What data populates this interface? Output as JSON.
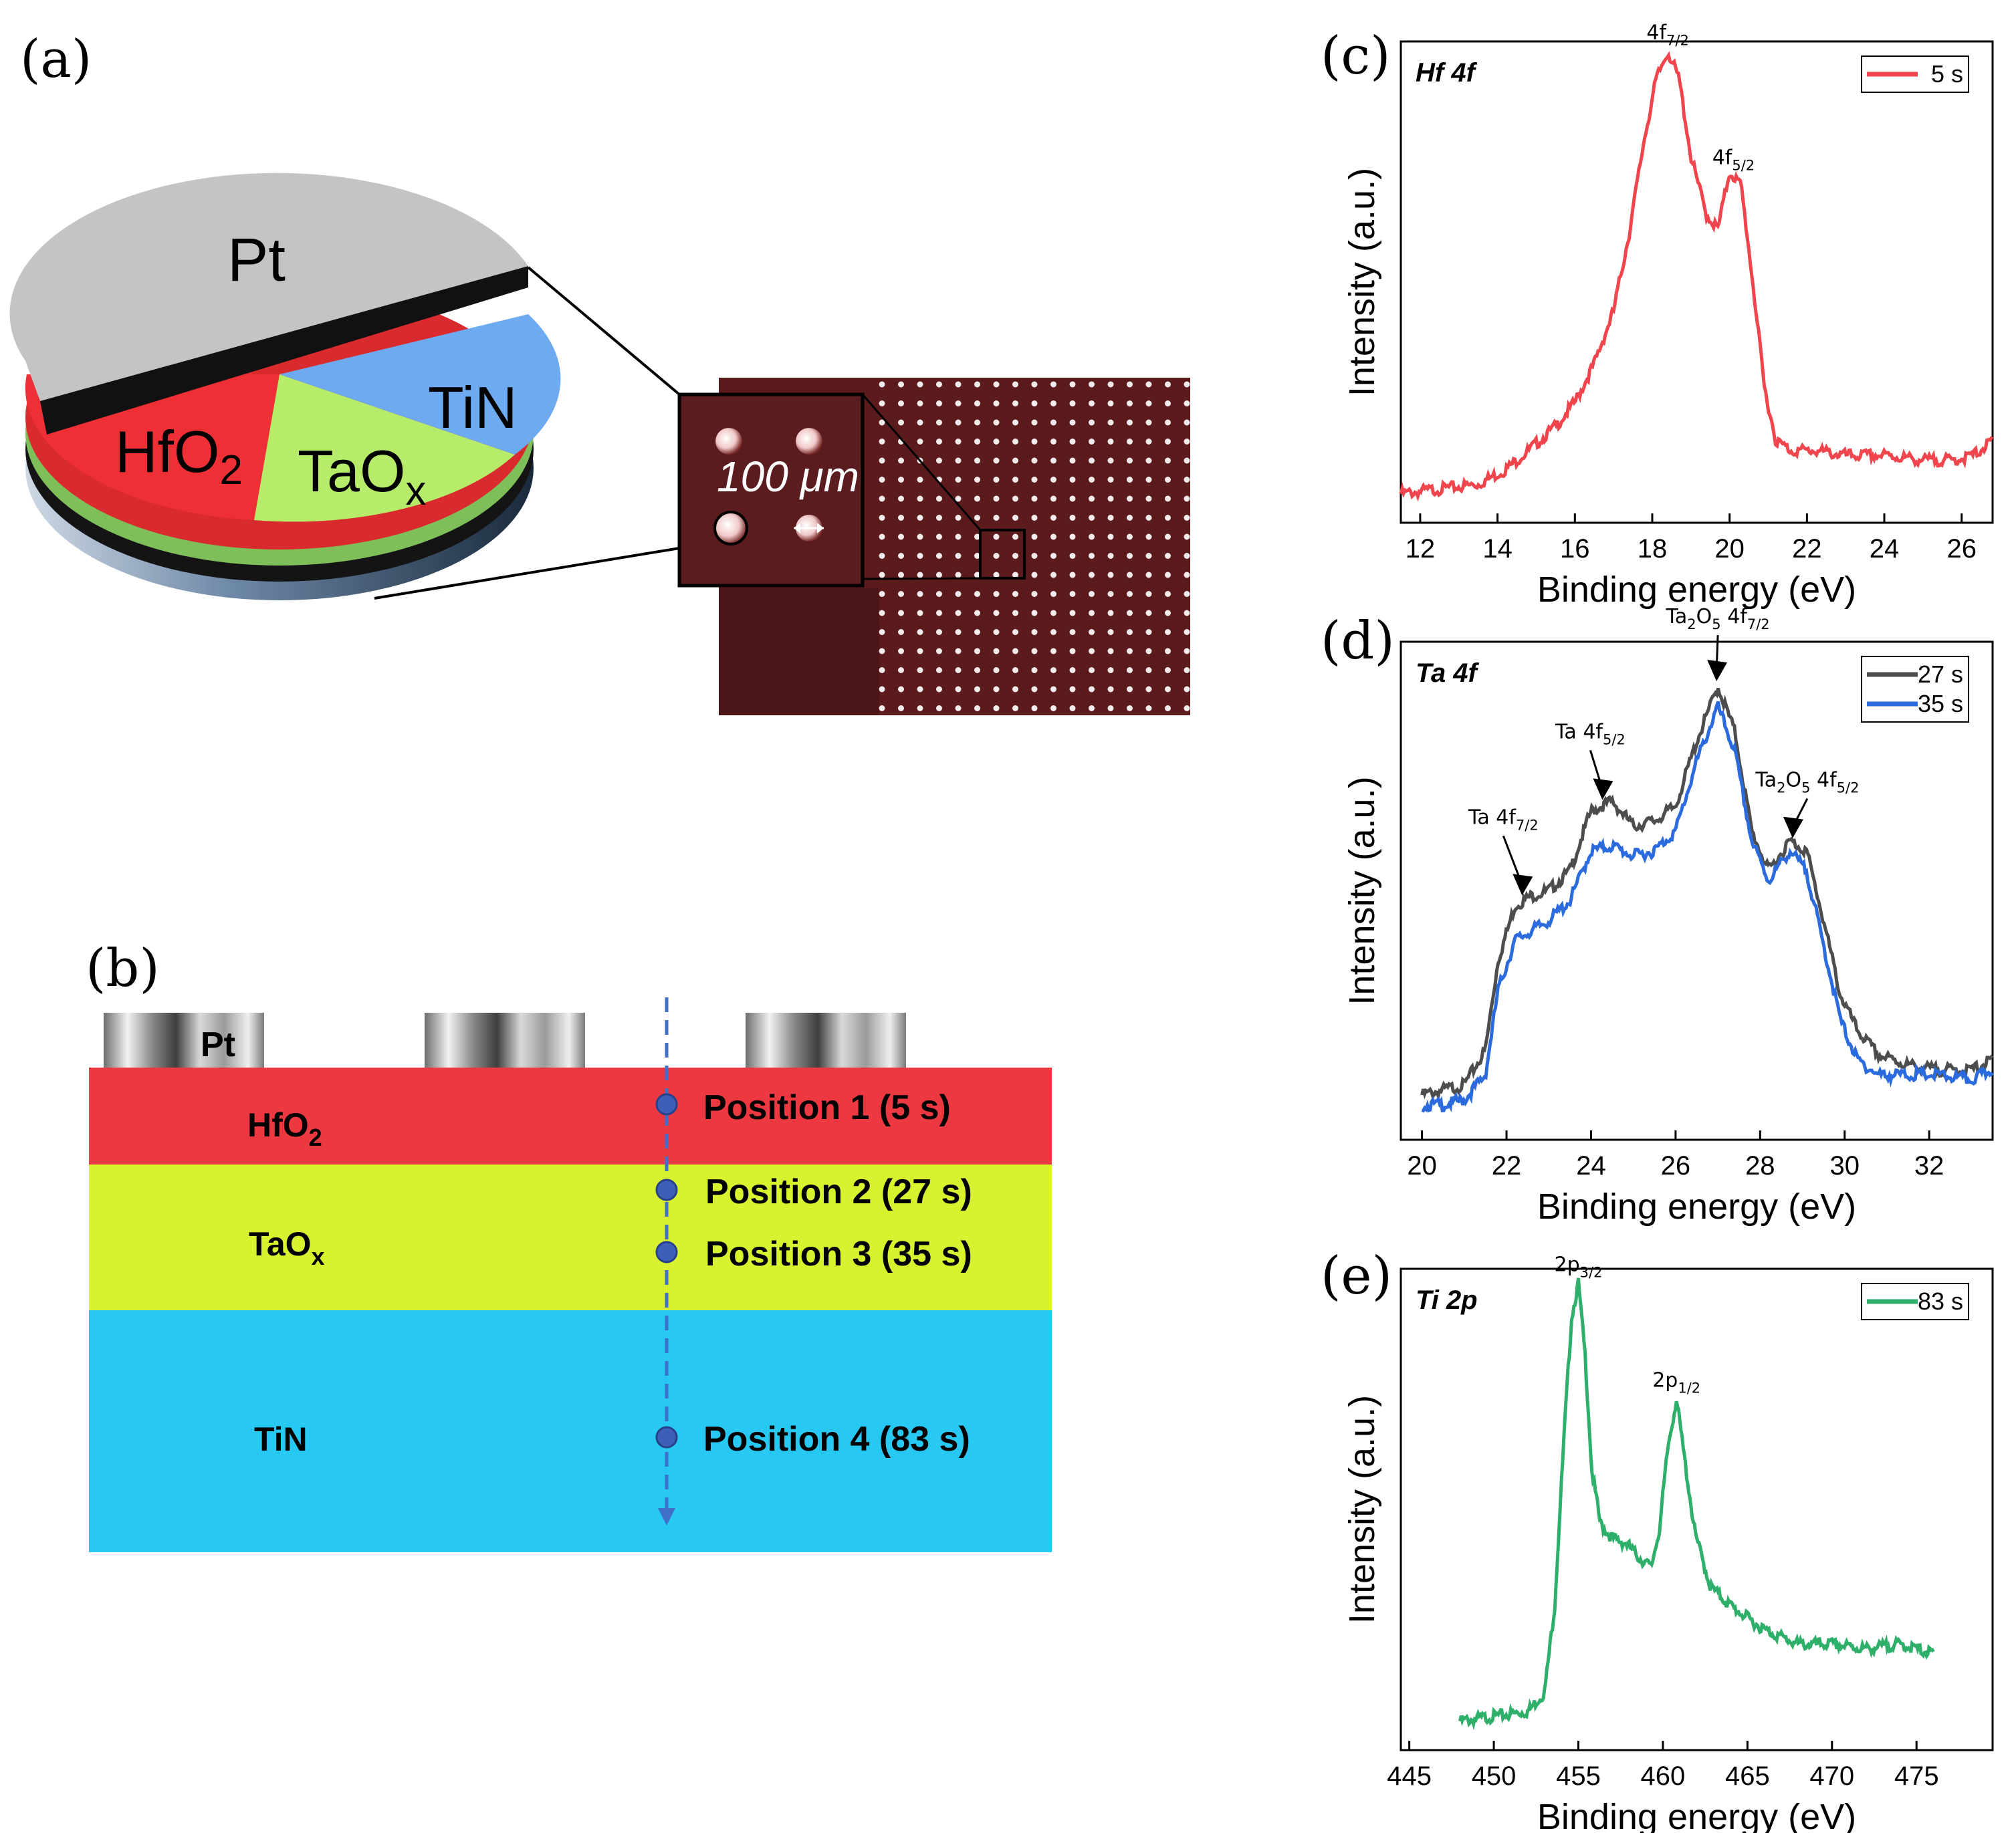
{
  "figure": {
    "panel_a": {
      "label": "(a)",
      "disk_layers": {
        "top": "Pt",
        "hfo2": "HfO",
        "hfo2_sub": "2",
        "taox": "TaO",
        "taox_sub": "x",
        "tin": "TiN"
      },
      "scale_label": "100 μm"
    },
    "panel_b": {
      "label": "(b)",
      "electrode_label": "Pt",
      "layers": [
        {
          "name": "HfO",
          "sub": "2",
          "color": "#ec3840"
        },
        {
          "name": "TaO",
          "sub": "x",
          "color": "#d8f230"
        },
        {
          "name": "TiN",
          "sub": "",
          "color": "#27c8f2"
        }
      ],
      "positions": [
        "Position 1 (5 s)",
        "Position 2 (27 s)",
        "Position 3 (35 s)",
        "Position 4 (83 s)"
      ]
    },
    "panel_c": {
      "label": "(c)"
    },
    "panel_d": {
      "label": "(d)"
    },
    "panel_e": {
      "label": "(e)"
    }
  },
  "chart_data": [
    {
      "type": "line",
      "panel": "c",
      "corner_label": "Hf 4f",
      "xlabel": "Binding energy (eV)",
      "ylabel": "Intensity (a.u.)",
      "xlim": [
        11.5,
        26.8
      ],
      "ylim": [
        0,
        1.0
      ],
      "xticks": [
        12,
        14,
        16,
        18,
        20,
        22,
        24,
        26
      ],
      "series": [
        {
          "name": "5 s",
          "color": "#f0454c",
          "x": [
            11.5,
            12.5,
            13.5,
            14.2,
            14.8,
            15.5,
            16.0,
            16.5,
            17.0,
            17.4,
            17.8,
            18.1,
            18.4,
            18.7,
            19.0,
            19.4,
            19.7,
            20.0,
            20.3,
            20.6,
            20.9,
            21.2,
            21.6,
            22.2,
            23.0,
            24.0,
            25.0,
            25.8,
            26.3,
            26.8
          ],
          "y": [
            0.06,
            0.07,
            0.08,
            0.11,
            0.15,
            0.2,
            0.25,
            0.33,
            0.44,
            0.6,
            0.8,
            0.92,
            0.98,
            0.92,
            0.76,
            0.64,
            0.61,
            0.73,
            0.7,
            0.5,
            0.28,
            0.17,
            0.15,
            0.15,
            0.14,
            0.14,
            0.13,
            0.13,
            0.14,
            0.17
          ]
        }
      ],
      "annotations": [
        {
          "text": "4f",
          "sub": "7/2",
          "x": 18.4
        },
        {
          "text": "4f",
          "sub": "5/2",
          "x": 20.1
        }
      ],
      "legend": "top-right"
    },
    {
      "type": "line",
      "panel": "d",
      "corner_label": "Ta 4f",
      "xlabel": "Binding energy (eV)",
      "ylabel": "Intensity (a.u.)",
      "xlim": [
        19.5,
        33.5
      ],
      "ylim": [
        0,
        1.0
      ],
      "xticks": [
        20,
        22,
        24,
        26,
        28,
        30,
        32
      ],
      "series": [
        {
          "name": "27 s",
          "color": "#4d4d4d",
          "x": [
            20.0,
            20.5,
            21.0,
            21.5,
            21.8,
            22.2,
            22.6,
            23.0,
            23.5,
            24.0,
            24.5,
            25.0,
            25.5,
            26.0,
            26.5,
            27.0,
            27.4,
            27.8,
            28.2,
            28.7,
            29.1,
            29.5,
            29.9,
            30.3,
            30.8,
            31.5,
            32.2,
            33.0,
            33.5
          ],
          "y": [
            0.09,
            0.1,
            0.11,
            0.18,
            0.36,
            0.47,
            0.49,
            0.5,
            0.54,
            0.66,
            0.68,
            0.63,
            0.64,
            0.67,
            0.8,
            0.91,
            0.82,
            0.62,
            0.54,
            0.6,
            0.58,
            0.44,
            0.29,
            0.22,
            0.17,
            0.15,
            0.14,
            0.14,
            0.16
          ]
        },
        {
          "name": "35 s",
          "color": "#2b6bde",
          "x": [
            20.0,
            20.5,
            21.0,
            21.5,
            21.8,
            22.2,
            22.6,
            23.0,
            23.5,
            24.0,
            24.5,
            25.0,
            25.5,
            26.0,
            26.5,
            27.0,
            27.4,
            27.8,
            28.2,
            28.7,
            29.1,
            29.5,
            29.9,
            30.3,
            30.8,
            31.5,
            32.2,
            33.0,
            33.5
          ],
          "y": [
            0.07,
            0.07,
            0.08,
            0.13,
            0.3,
            0.4,
            0.42,
            0.44,
            0.48,
            0.58,
            0.59,
            0.57,
            0.58,
            0.62,
            0.76,
            0.87,
            0.78,
            0.6,
            0.52,
            0.58,
            0.54,
            0.39,
            0.24,
            0.16,
            0.13,
            0.13,
            0.13,
            0.12,
            0.14
          ]
        }
      ],
      "annotations": [
        {
          "text": "Ta 4f",
          "sub": "7/2",
          "x": 22.4
        },
        {
          "text": "Ta 4f",
          "sub": "5/2",
          "x": 24.3
        },
        {
          "text": "Ta",
          "sub": "2",
          "text2": "O",
          "sub2": "5",
          "text3": " 4f",
          "sub3": "7/2",
          "x": 27.0
        },
        {
          "text": "Ta",
          "sub": "2",
          "text2": "O",
          "sub2": "5",
          "text3": " 4f",
          "sub3": "5/2",
          "x": 28.8
        }
      ],
      "legend": "top-right"
    },
    {
      "type": "line",
      "panel": "e",
      "corner_label": "Ti 2p",
      "xlabel": "Binding energy (eV)",
      "ylabel": "Intensity (a.u.)",
      "xlim": [
        444.5,
        479.5
      ],
      "ylim": [
        0,
        1.0
      ],
      "xticks": [
        445,
        450,
        455,
        460,
        465,
        470,
        475
      ],
      "series": [
        {
          "name": "83 s",
          "color": "#2eaf6a",
          "x": [
            448.0,
            450.0,
            452.0,
            453.0,
            453.6,
            454.2,
            454.6,
            455.0,
            455.4,
            455.8,
            456.3,
            457.0,
            457.8,
            458.6,
            459.3,
            459.8,
            460.3,
            460.8,
            461.3,
            461.9,
            462.8,
            464.0,
            466.0,
            468.0,
            470.0,
            472.0,
            474.0,
            476.0
          ],
          "y": [
            0.06,
            0.07,
            0.08,
            0.12,
            0.3,
            0.68,
            0.9,
            0.97,
            0.82,
            0.58,
            0.47,
            0.44,
            0.43,
            0.4,
            0.38,
            0.46,
            0.63,
            0.73,
            0.6,
            0.45,
            0.34,
            0.3,
            0.25,
            0.22,
            0.22,
            0.21,
            0.22,
            0.2
          ]
        }
      ],
      "annotations": [
        {
          "text": "2p",
          "sub": "3/2",
          "x": 455.0
        },
        {
          "text": "2p",
          "sub": "1/2",
          "x": 460.8
        }
      ],
      "legend": "top-right"
    }
  ]
}
